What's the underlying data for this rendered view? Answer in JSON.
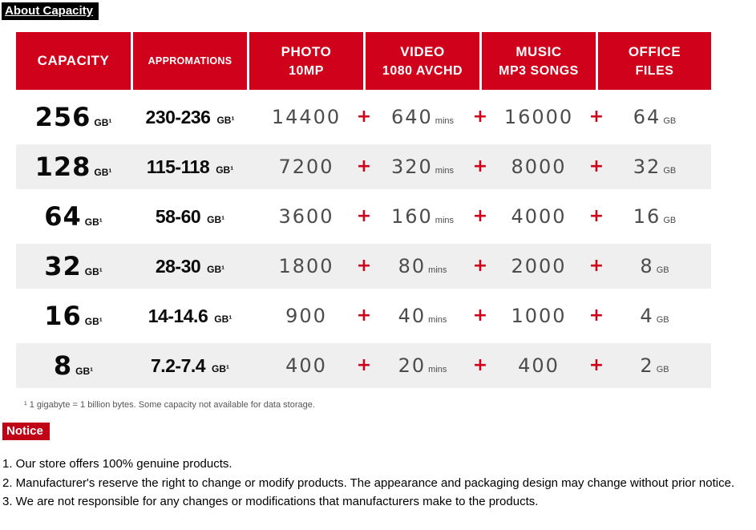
{
  "page": {
    "about_label": "About Capacity",
    "footnote": "¹ 1 gigabyte = 1 billion bytes. Some capacity not available for data storage.",
    "notice": {
      "label": "Notice",
      "items": [
        "1. Our store offers 100% genuine products.",
        "2. Manufacturer's reserve the right to change or modify products. The appearance and packaging design may change without prior notice.",
        "3. We are not responsible for any changes or modifications that manufacturers make to the products."
      ]
    }
  },
  "colors": {
    "header_red": "#d0021b",
    "notice_red": "#c00316",
    "row_alt_gray": "#efefef",
    "label_black": "#000000",
    "value_gray": "#4c4c4c"
  },
  "table": {
    "plus_sign": "+",
    "headers": [
      {
        "line1": "CAPACITY",
        "line2": ""
      },
      {
        "line1": "APPROMATIONS",
        "line2": ""
      },
      {
        "line1": "PHOTO",
        "line2": "10MP"
      },
      {
        "line1": "VIDEO",
        "line2": "1080 AVCHD"
      },
      {
        "line1": "MUSIC",
        "line2": "MP3 SONGS"
      },
      {
        "line1": "OFFICE",
        "line2": "FILES"
      }
    ],
    "rows": [
      {
        "capacity": "256",
        "capacity_unit": "GB¹",
        "approx": "230-236",
        "approx_unit": "GB¹",
        "photo": "14400",
        "video": "640",
        "video_unit": "mins",
        "music": "16000",
        "office": "64",
        "office_unit": "GB"
      },
      {
        "capacity": "128",
        "capacity_unit": "GB¹",
        "approx": "115-118",
        "approx_unit": "GB¹",
        "photo": "7200",
        "video": "320",
        "video_unit": "mins",
        "music": "8000",
        "office": "32",
        "office_unit": "GB"
      },
      {
        "capacity": "64",
        "capacity_unit": "GB¹",
        "approx": "58-60",
        "approx_unit": "GB¹",
        "photo": "3600",
        "video": "160",
        "video_unit": "mins",
        "music": "4000",
        "office": "16",
        "office_unit": "GB"
      },
      {
        "capacity": "32",
        "capacity_unit": "GB¹",
        "approx": "28-30",
        "approx_unit": "GB¹",
        "photo": "1800",
        "video": "80",
        "video_unit": "mins",
        "music": "2000",
        "office": "8",
        "office_unit": "GB"
      },
      {
        "capacity": "16",
        "capacity_unit": "GB¹",
        "approx": "14-14.6",
        "approx_unit": "GB¹",
        "photo": "900",
        "video": "40",
        "video_unit": "mins",
        "music": "1000",
        "office": "4",
        "office_unit": "GB"
      },
      {
        "capacity": "8",
        "capacity_unit": "GB¹",
        "approx": "7.2-7.4",
        "approx_unit": "GB¹",
        "photo": "400",
        "video": "20",
        "video_unit": "mins",
        "music": "400",
        "office": "2",
        "office_unit": "GB"
      }
    ]
  }
}
